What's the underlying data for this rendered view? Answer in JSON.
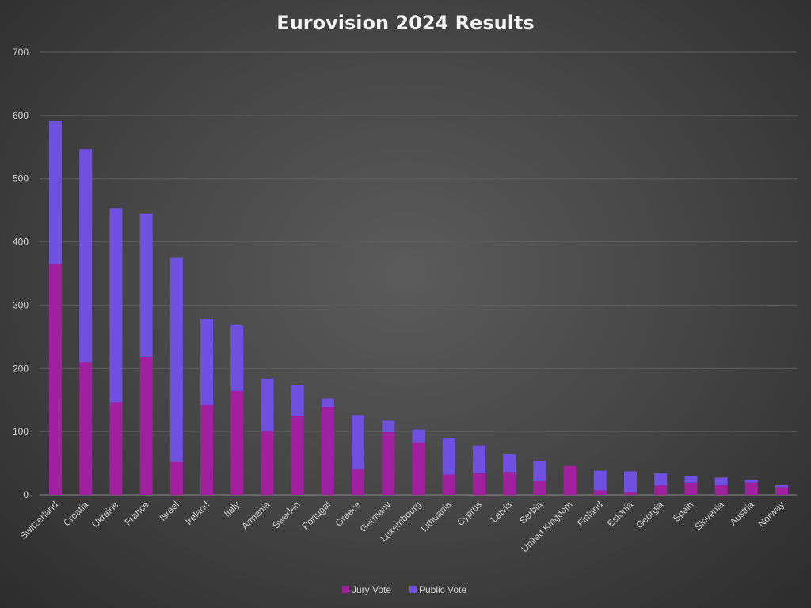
{
  "chart_data": {
    "type": "bar",
    "stacked": true,
    "title": "Eurovision 2024 Results",
    "xlabel": "",
    "ylabel": "",
    "ylim": [
      0,
      700
    ],
    "yticks": [
      0,
      100,
      200,
      300,
      400,
      500,
      600,
      700
    ],
    "grid": true,
    "legend_position": "bottom",
    "categories": [
      "Switzerland",
      "Croatia",
      "Ukraine",
      "France",
      "Israel",
      "Ireland",
      "Italy",
      "Armenia",
      "Sweden",
      "Portugal",
      "Greece",
      "Germany",
      "Luxembourg",
      "Lithuania",
      "Cyprus",
      "Latvia",
      "Serbia",
      "United Kingdom",
      "Finland",
      "Estonia",
      "Georgia",
      "Spain",
      "Slovenia",
      "Austria",
      "Norway"
    ],
    "series": [
      {
        "name": "Jury Vote",
        "color": "#a020a0",
        "values": [
          365,
          210,
          146,
          218,
          52,
          142,
          164,
          101,
          125,
          139,
          41,
          99,
          83,
          32,
          34,
          36,
          22,
          46,
          7,
          4,
          15,
          19,
          15,
          19,
          12
        ]
      },
      {
        "name": "Public Vote",
        "color": "#7050e0",
        "values": [
          226,
          337,
          307,
          227,
          323,
          136,
          104,
          82,
          49,
          13,
          85,
          18,
          20,
          58,
          44,
          28,
          32,
          0,
          31,
          33,
          19,
          11,
          12,
          5,
          4
        ]
      }
    ]
  }
}
